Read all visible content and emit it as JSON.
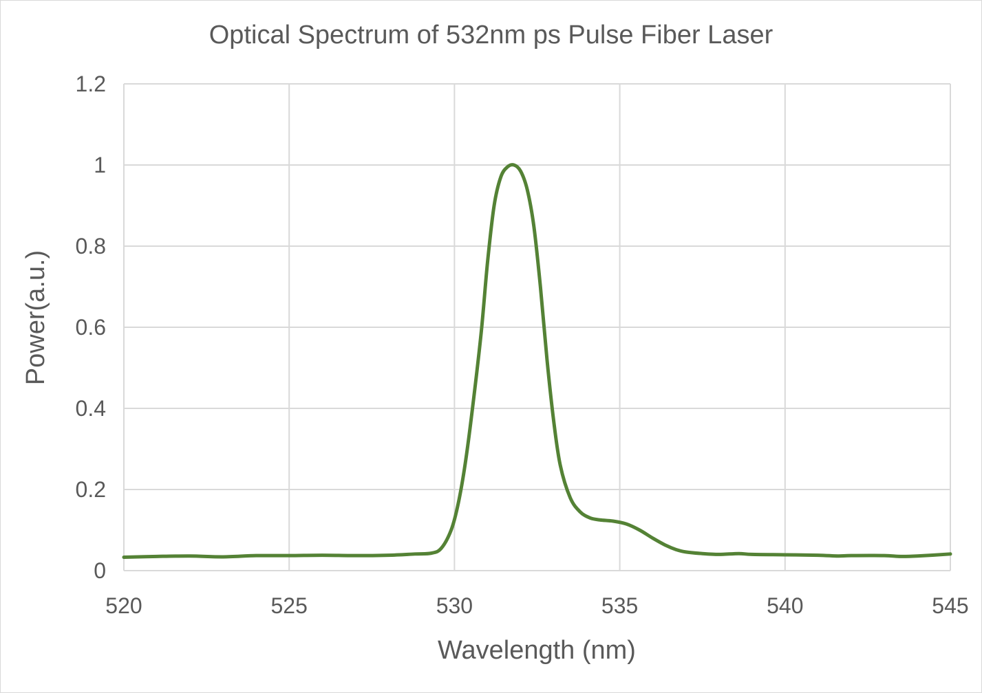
{
  "chart_data": {
    "type": "line",
    "title": "Optical Spectrum of 532nm ps Pulse Fiber Laser",
    "xlabel": "Wavelength (nm)",
    "ylabel": "Power(a.u.)",
    "xlim": [
      520,
      545
    ],
    "ylim": [
      0,
      1.2
    ],
    "xticks": [
      "520",
      "525",
      "530",
      "535",
      "540",
      "545"
    ],
    "yticks": [
      "0",
      "0.2",
      "0.4",
      "0.6",
      "0.8",
      "1",
      "1.2"
    ],
    "grid": true,
    "legend": "none",
    "series": [
      {
        "color": "#548235",
        "x": [
          520,
          521,
          522,
          523,
          524,
          525,
          526,
          527,
          528,
          528.8,
          529.3,
          529.6,
          529.9,
          530.1,
          530.3,
          530.5,
          530.8,
          531.0,
          531.2,
          531.4,
          531.6,
          531.8,
          532.0,
          532.2,
          532.4,
          532.6,
          532.8,
          533.0,
          533.2,
          533.5,
          533.8,
          534.1,
          534.4,
          534.8,
          535.2,
          535.6,
          536.0,
          536.4,
          536.7,
          537.0,
          537.5,
          538.0,
          538.6,
          539.0,
          540.0,
          541.0,
          541.6,
          542.0,
          543.0,
          543.5,
          544.0,
          545.0
        ],
        "y": [
          0.033,
          0.035,
          0.036,
          0.034,
          0.037,
          0.037,
          0.038,
          0.037,
          0.038,
          0.041,
          0.043,
          0.055,
          0.1,
          0.16,
          0.25,
          0.37,
          0.58,
          0.76,
          0.9,
          0.97,
          0.995,
          1.0,
          0.985,
          0.94,
          0.85,
          0.7,
          0.52,
          0.37,
          0.26,
          0.18,
          0.145,
          0.13,
          0.125,
          0.122,
          0.115,
          0.1,
          0.08,
          0.062,
          0.052,
          0.046,
          0.042,
          0.04,
          0.042,
          0.04,
          0.039,
          0.038,
          0.036,
          0.037,
          0.037,
          0.035,
          0.036,
          0.041
        ]
      }
    ]
  }
}
